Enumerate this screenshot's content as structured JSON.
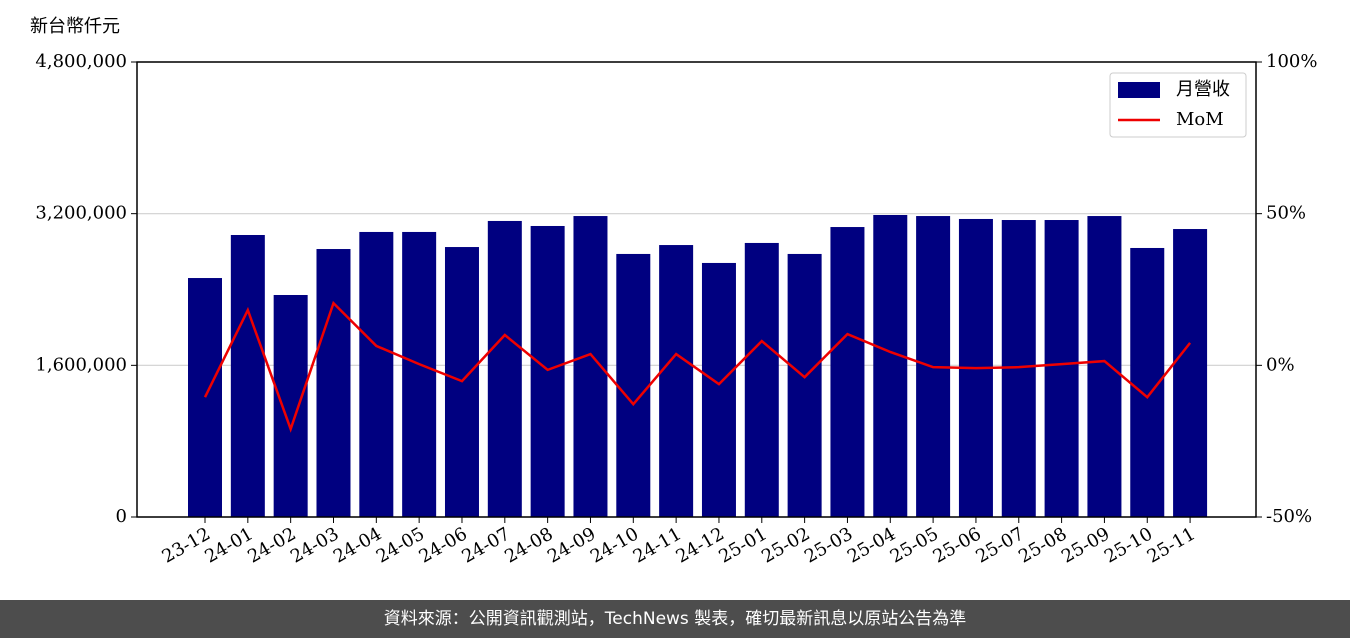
{
  "chart_data": {
    "type": "bar-line",
    "y_axis_label": "新台幣仟元",
    "categories": [
      "23-12",
      "24-01",
      "24-02",
      "24-03",
      "24-04",
      "24-05",
      "24-06",
      "24-07",
      "24-08",
      "24-09",
      "24-10",
      "24-11",
      "24-12",
      "25-01",
      "25-02",
      "25-03",
      "25-04",
      "25-05",
      "25-06",
      "25-07",
      "25-08",
      "25-09",
      "25-10",
      "25-11"
    ],
    "series": [
      {
        "name": "月營收",
        "type": "bar",
        "color": "#000080",
        "values": [
          2521000,
          2975000,
          2342000,
          2827000,
          3007000,
          3007000,
          2848000,
          3123000,
          3070000,
          3175000,
          2775000,
          2869000,
          2680000,
          2891000,
          2775000,
          3059000,
          3186000,
          3175000,
          3144000,
          3133000,
          3133000,
          3175000,
          2838000,
          3038000
        ]
      },
      {
        "name": "MoM",
        "type": "line",
        "axis": "y2",
        "color": "#ee0000",
        "values": [
          -10.5,
          18.2,
          -21,
          20.5,
          6.4,
          0.4,
          -5.2,
          10,
          -1.5,
          3.7,
          -12.8,
          3.7,
          -6.2,
          8,
          -3.9,
          10.3,
          4.4,
          -0.6,
          -0.9,
          -0.6,
          0.4,
          1.4,
          -10.5,
          7.4
        ]
      }
    ],
    "ylim": [
      0,
      4800000
    ],
    "yticks": [
      0,
      {
        "value": 1600000,
        "label": "1,600,000"
      },
      {
        "value": 3200000,
        "label": "3,200,000"
      },
      {
        "value": 4800000,
        "label": "4,800,000"
      }
    ],
    "y2lim": [
      -50,
      100
    ],
    "y2ticks": [
      {
        "value": -50,
        "label": "-50%"
      },
      {
        "value": 0,
        "label": "0%"
      },
      {
        "value": 50,
        "label": "50%"
      },
      {
        "value": 100,
        "label": "100%"
      }
    ],
    "grid": true,
    "legend": "upper right"
  },
  "footer": "資料來源：公開資訊觀測站，TechNews 製表，確切最新訊息以原站公告為準"
}
